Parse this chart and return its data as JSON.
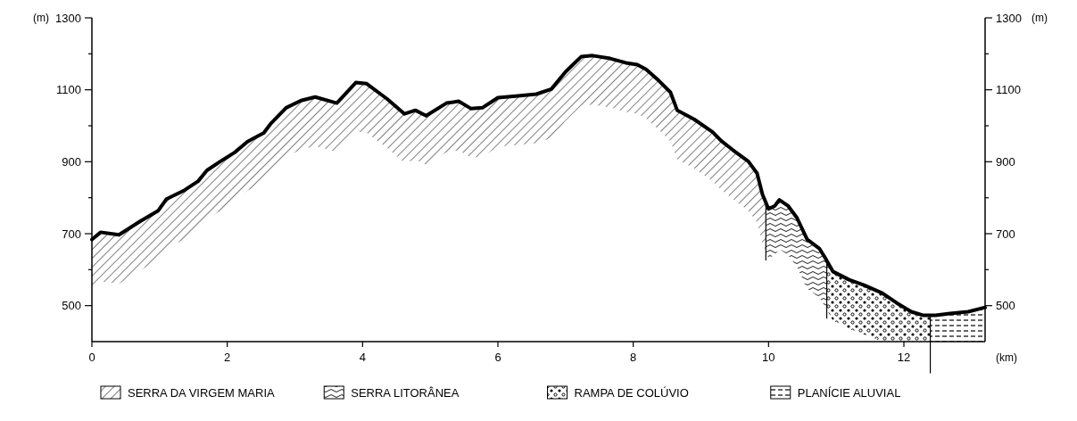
{
  "chart_data": {
    "type": "line",
    "xlabel": "(km)",
    "ylabel": "(m)",
    "y2label": "(m)",
    "x": [
      0,
      0.13,
      0.4,
      0.71,
      0.98,
      1.1,
      1.37,
      1.57,
      1.7,
      1.9,
      2.11,
      2.3,
      2.54,
      2.64,
      2.87,
      3.09,
      3.3,
      3.62,
      3.9,
      4.06,
      4.36,
      4.62,
      4.78,
      4.94,
      5.24,
      5.42,
      5.6,
      5.77,
      6.0,
      6.3,
      6.57,
      6.79,
      7.0,
      7.23,
      7.4,
      7.66,
      7.89,
      8.06,
      8.19,
      8.38,
      8.55,
      8.65,
      8.9,
      9.17,
      9.3,
      9.47,
      9.7,
      9.83,
      9.91,
      10.0,
      10.09,
      10.16,
      10.29,
      10.42,
      10.57,
      10.75,
      10.83,
      10.95,
      11.19,
      11.41,
      11.68,
      11.89,
      12.11,
      12.29,
      12.47,
      12.68,
      12.95,
      13.2
    ],
    "series": [
      {
        "color": "#000000",
        "values": [
          684,
          704,
          697,
          734,
          764,
          796,
          821,
          846,
          876,
          901,
          926,
          956,
          980,
          1005,
          1050,
          1070,
          1080,
          1063,
          1120,
          1117,
          1075,
          1033,
          1043,
          1028,
          1063,
          1068,
          1048,
          1050,
          1078,
          1083,
          1088,
          1102,
          1150,
          1192,
          1195,
          1187,
          1175,
          1170,
          1157,
          1125,
          1093,
          1043,
          1018,
          983,
          958,
          933,
          901,
          868,
          809,
          769,
          777,
          794,
          777,
          744,
          684,
          659,
          635,
          595,
          572,
          557,
          535,
          508,
          483,
          473,
          473,
          478,
          483,
          495
        ]
      }
    ],
    "xlim": [
      0,
      13.2
    ],
    "xticks": [
      0,
      2,
      4,
      6,
      8,
      10,
      12
    ],
    "ylim": [
      400,
      1300
    ],
    "yticks": [
      {
        "value": 500,
        "label": "500"
      },
      {
        "value": 600,
        "label": null
      },
      {
        "value": 700,
        "label": "700"
      },
      {
        "value": 800,
        "label": null
      },
      {
        "value": 900,
        "label": "900"
      },
      {
        "value": 1000,
        "label": null
      },
      {
        "value": 1100,
        "label": "1100"
      },
      {
        "value": 1200,
        "label": null
      },
      {
        "value": 1300,
        "label": "1300"
      }
    ],
    "y2lim": [
      400,
      1300
    ],
    "y2ticks": [
      {
        "value": 500,
        "label": "500"
      },
      {
        "value": 600,
        "label": null
      },
      {
        "value": 700,
        "label": "700"
      },
      {
        "value": 800,
        "label": null
      },
      {
        "value": 900,
        "label": "900"
      },
      {
        "value": 1000,
        "label": null
      },
      {
        "value": 1100,
        "label": "1100"
      },
      {
        "value": 1200,
        "label": null
      },
      {
        "value": 1300,
        "label": "1300"
      }
    ],
    "bands": [
      {
        "axis": "x",
        "from": 0,
        "to": 9.96,
        "label": "SERRA DA VIRGEM MARIA",
        "color": "#000000"
      },
      {
        "axis": "x",
        "from": 9.96,
        "to": 10.86,
        "label": "SERRA LITORÂNEA",
        "color": "#000000"
      },
      {
        "axis": "x",
        "from": 10.86,
        "to": 12.39,
        "label": "RAMPA DE COLÚVIO",
        "color": "#000000"
      },
      {
        "axis": "x",
        "from": 12.39,
        "to": 13.2,
        "label": "PLANÍCIE ALUVIAL",
        "color": "#000000"
      }
    ],
    "legend": "bottom",
    "grid": false,
    "marker": "none",
    "line_style": "solid"
  }
}
